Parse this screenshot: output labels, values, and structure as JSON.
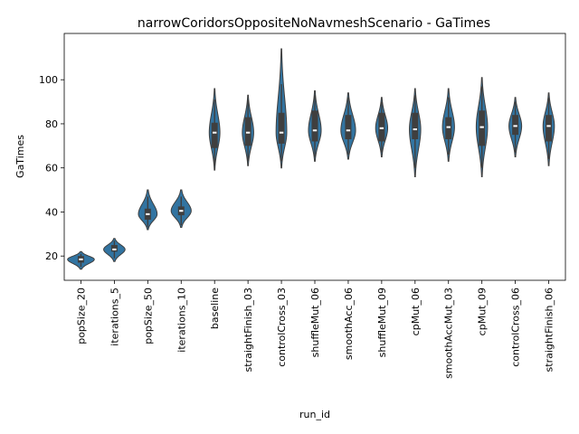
{
  "chart_data": {
    "type": "violin",
    "title": "narrowCoridorsOppositeNoNavmeshScenario - GaTimes",
    "xlabel": "run_id",
    "ylabel": "GaTimes",
    "ylim": [
      9,
      121
    ],
    "yticks": [
      20,
      40,
      60,
      80,
      100
    ],
    "color": "#3274a1",
    "grid": false,
    "categories": [
      "popSize_20",
      "iterations_5",
      "popSize_50",
      "iterations_10",
      "baseline",
      "straightFinish_03",
      "controlCross_03",
      "shuffleMut_06",
      "smoothAcc_06",
      "shuffleMut_09",
      "cpMut_06",
      "smoothAccMut_03",
      "cpMut_09",
      "controlCross_06",
      "straightFinish_06"
    ],
    "series": [
      {
        "min": 14,
        "q1": 17,
        "median": 18.5,
        "q3": 20,
        "max": 22,
        "whisker_low": 15,
        "whisker_high": 21,
        "halfwidth": 0.4
      },
      {
        "min": 17.5,
        "q1": 22,
        "median": 23,
        "q3": 25,
        "max": 28,
        "whisker_low": 19,
        "whisker_high": 27,
        "halfwidth": 0.32
      },
      {
        "min": 32,
        "q1": 36.5,
        "median": 39,
        "q3": 41.5,
        "max": 50,
        "whisker_low": 33,
        "whisker_high": 47,
        "halfwidth": 0.28
      },
      {
        "min": 33,
        "q1": 38.5,
        "median": 40.5,
        "q3": 42.5,
        "max": 50,
        "whisker_low": 34,
        "whisker_high": 47,
        "halfwidth": 0.3
      },
      {
        "min": 59,
        "q1": 69,
        "median": 76,
        "q3": 80.5,
        "max": 96,
        "whisker_low": 61,
        "whisker_high": 91,
        "halfwidth": 0.16
      },
      {
        "min": 61,
        "q1": 70,
        "median": 76,
        "q3": 83,
        "max": 93,
        "whisker_low": 63,
        "whisker_high": 91,
        "halfwidth": 0.17
      },
      {
        "min": 60,
        "q1": 71,
        "median": 76,
        "q3": 85,
        "max": 114,
        "whisker_low": 63,
        "whisker_high": 98,
        "halfwidth": 0.16
      },
      {
        "min": 63,
        "q1": 72,
        "median": 77,
        "q3": 86,
        "max": 95,
        "whisker_low": 65,
        "whisker_high": 93,
        "halfwidth": 0.19
      },
      {
        "min": 64,
        "q1": 73,
        "median": 77,
        "q3": 84,
        "max": 94,
        "whisker_low": 66,
        "whisker_high": 92,
        "halfwidth": 0.22
      },
      {
        "min": 65,
        "q1": 72,
        "median": 78,
        "q3": 85,
        "max": 92,
        "whisker_low": 67,
        "whisker_high": 90,
        "halfwidth": 0.18
      },
      {
        "min": 56,
        "q1": 73,
        "median": 77.5,
        "q3": 85,
        "max": 96,
        "whisker_low": 60,
        "whisker_high": 93,
        "halfwidth": 0.17
      },
      {
        "min": 63,
        "q1": 73,
        "median": 78.5,
        "q3": 83,
        "max": 96,
        "whisker_low": 66,
        "whisker_high": 92,
        "halfwidth": 0.18
      },
      {
        "min": 56,
        "q1": 70,
        "median": 78.5,
        "q3": 86,
        "max": 101,
        "whisker_low": 60,
        "whisker_high": 97,
        "halfwidth": 0.17
      },
      {
        "min": 65,
        "q1": 75,
        "median": 79,
        "q3": 84,
        "max": 92,
        "whisker_low": 67,
        "whisker_high": 90,
        "halfwidth": 0.19
      },
      {
        "min": 61,
        "q1": 72,
        "median": 79,
        "q3": 84,
        "max": 94,
        "whisker_low": 64,
        "whisker_high": 92,
        "halfwidth": 0.17
      }
    ]
  }
}
